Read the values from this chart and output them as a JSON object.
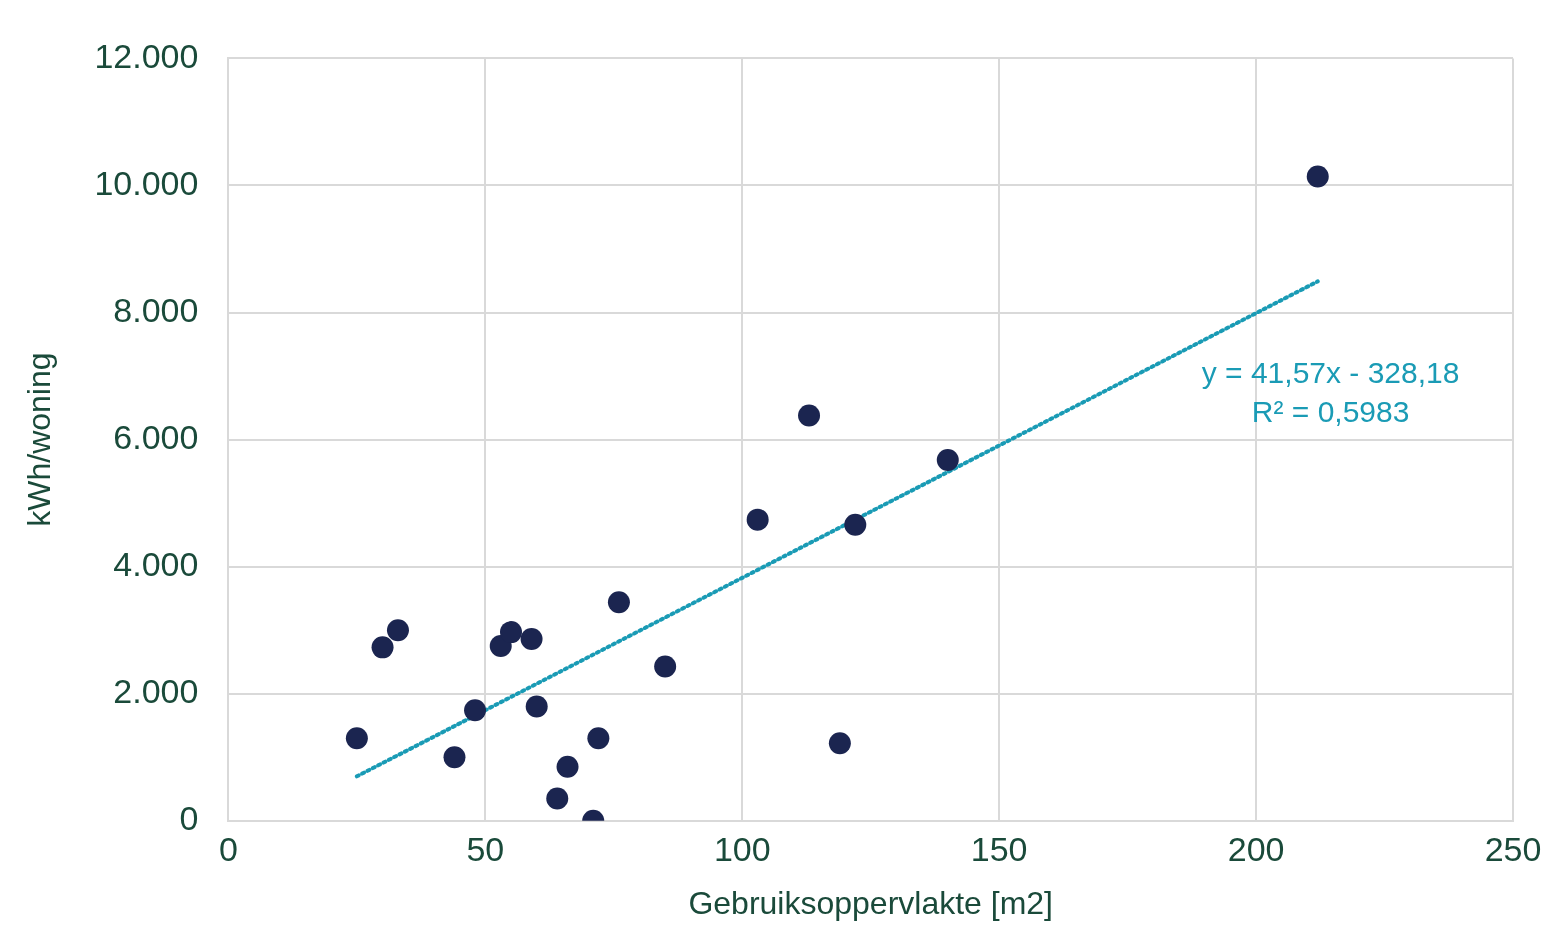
{
  "chart_data": {
    "type": "scatter",
    "xlabel": "Gebruiksoppervlakte [m2]",
    "ylabel": "kWh/woning",
    "xlim": [
      0,
      250
    ],
    "xticks": [
      0,
      50,
      100,
      150,
      200,
      250
    ],
    "ylim": [
      0,
      12000
    ],
    "yticks": [
      {
        "value": 0,
        "label": "0"
      },
      {
        "value": 2000,
        "label": "2.000"
      },
      {
        "value": 4000,
        "label": "4.000"
      },
      {
        "value": 6000,
        "label": "6.000"
      },
      {
        "value": 8000,
        "label": "8.000"
      },
      {
        "value": 10000,
        "label": "10.000"
      },
      {
        "value": 12000,
        "label": "12.000"
      }
    ],
    "grid": true,
    "legend": false,
    "series": [
      {
        "color": "#1b2550",
        "marker": "circle",
        "x": [
          25,
          30,
          33,
          44,
          48,
          53,
          55,
          59,
          60,
          64,
          66,
          71,
          72,
          76,
          85,
          103,
          113,
          119,
          122,
          140,
          212
        ],
        "values": [
          1300,
          2730,
          3000,
          1000,
          1740,
          2750,
          2970,
          2860,
          1800,
          350,
          850,
          0,
          1300,
          3440,
          2430,
          4740,
          6380,
          1220,
          4660,
          5680,
          10140
        ]
      },
      {
        "type": "line",
        "color": "#1a9bb5",
        "marker": "none",
        "line_style": "dotted",
        "x": [
          25,
          212
        ],
        "values": [
          700,
          8490
        ]
      }
    ],
    "annotations": [
      "y = 41,57x - 328,18",
      "R² = 0,5983"
    ]
  }
}
